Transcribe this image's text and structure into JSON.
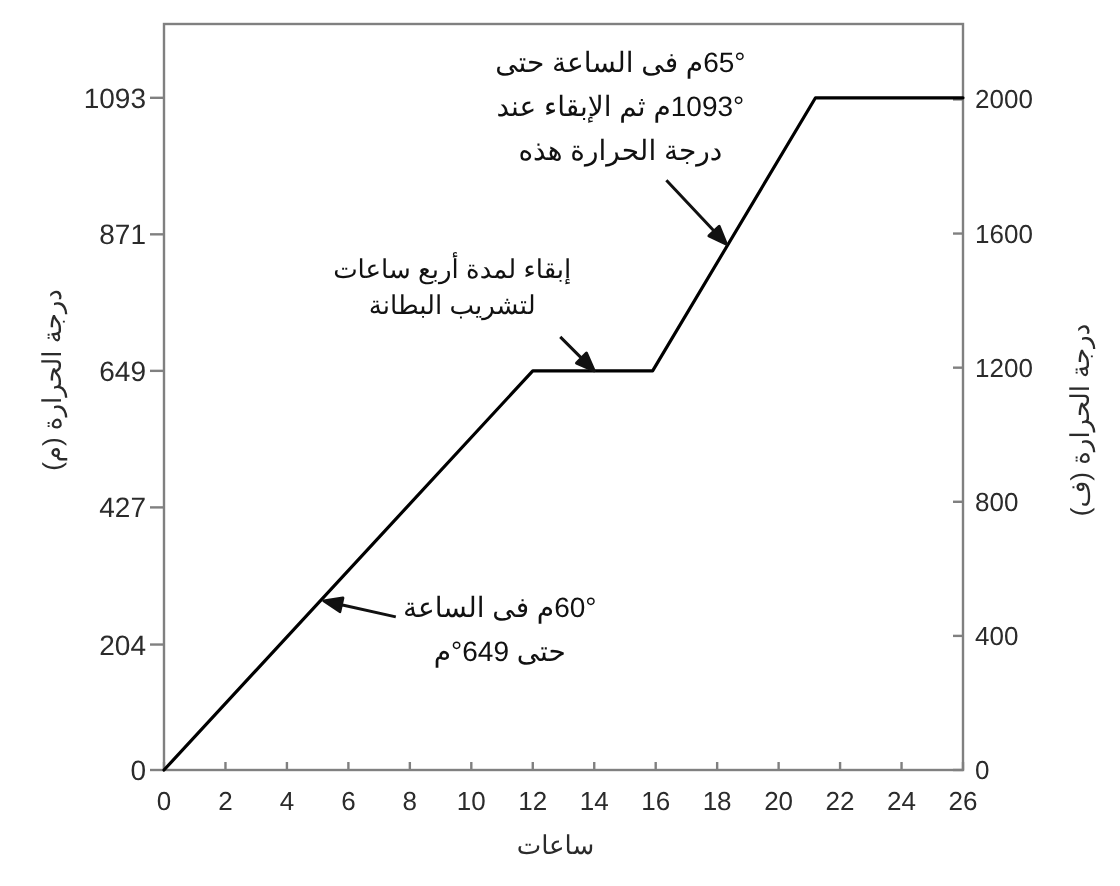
{
  "chart_data": {
    "type": "line",
    "xlabel": "ساعات",
    "ylabel": "درجة الحرارة (م)",
    "y2label": "درجة الحرارة (ف)",
    "x": [
      0,
      12,
      15.9,
      21.2,
      26
    ],
    "series": [
      {
        "color": "#000000",
        "values": [
          0,
          649,
          649,
          1093,
          1093
        ]
      }
    ],
    "xlim": [
      0,
      26
    ],
    "xticks": [
      0,
      2,
      4,
      6,
      8,
      10,
      12,
      14,
      16,
      18,
      20,
      22,
      24,
      26
    ],
    "ylim": [
      0,
      1213
    ],
    "yticks": [
      0,
      204,
      427,
      649,
      871,
      1093
    ],
    "y2lim": [
      0,
      2225
    ],
    "y2ticks": [
      0,
      400,
      800,
      1200,
      1600,
      2000
    ],
    "marker": "none",
    "line_style": "solid",
    "annotations": [
      {
        "text": "65°م فى الساعة حتى\n1093°م ثم الإبقاء عند\nدرجة الحرارة هذه",
        "x": 18.3,
        "y": 855
      },
      {
        "text": "إبقاء لمدة أربع ساعات\nلتشريب البطانة",
        "x": 14,
        "y": 649
      },
      {
        "text": "60°م فى الساعة\nحتى 649°م",
        "x": 5.2,
        "y": 275
      }
    ]
  }
}
